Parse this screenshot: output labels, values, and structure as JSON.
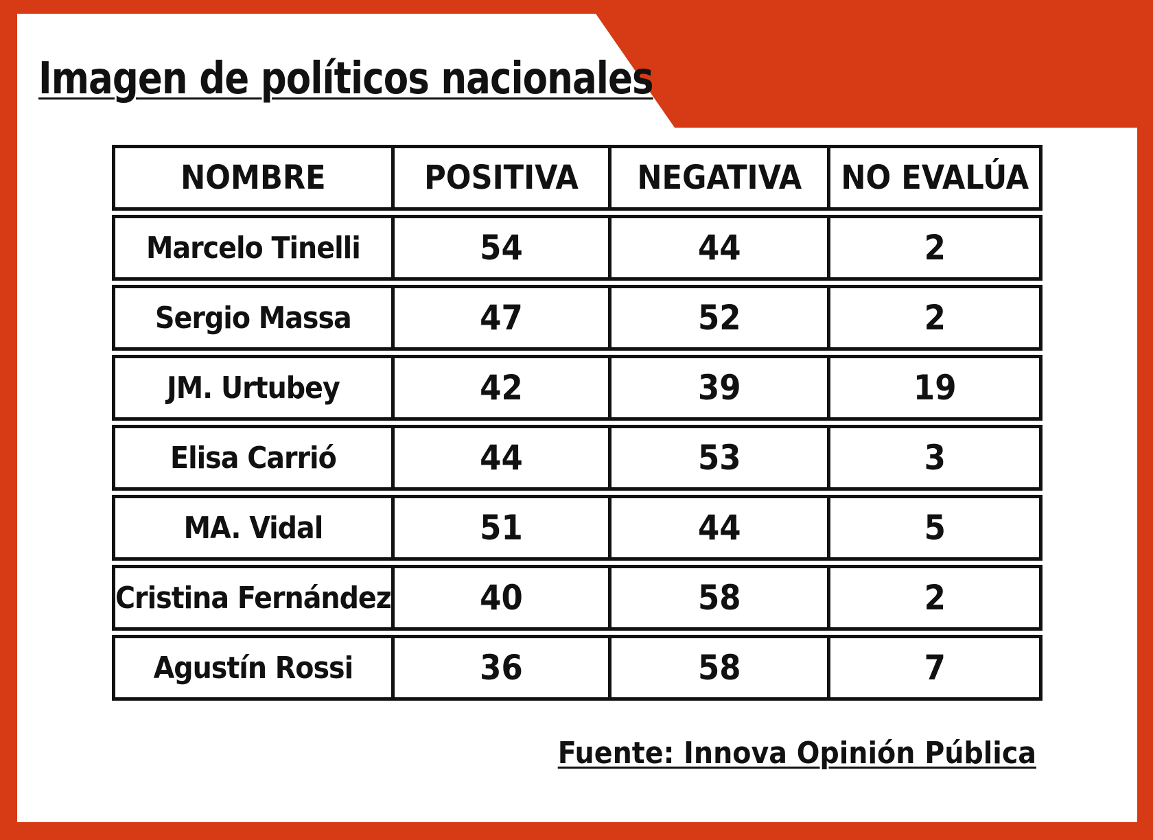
{
  "accent_color": "#d63b15",
  "chart_data": {
    "type": "table",
    "title": "Imagen de políticos nacionales",
    "columns": [
      "NOMBRE",
      "POSITIVA",
      "NEGATIVA",
      "NO EVALÚA"
    ],
    "rows": [
      {
        "name": "Marcelo Tinelli",
        "positiva": 54,
        "negativa": 44,
        "no_evalua": 2
      },
      {
        "name": "Sergio Massa",
        "positiva": 47,
        "negativa": 52,
        "no_evalua": 2
      },
      {
        "name": "JM. Urtubey",
        "positiva": 42,
        "negativa": 39,
        "no_evalua": 19
      },
      {
        "name": "Elisa Carrió",
        "positiva": 44,
        "negativa": 53,
        "no_evalua": 3
      },
      {
        "name": "MA. Vidal",
        "positiva": 51,
        "negativa": 44,
        "no_evalua": 5
      },
      {
        "name": "Cristina Fernández",
        "positiva": 40,
        "negativa": 58,
        "no_evalua": 2
      },
      {
        "name": "Agustín Rossi",
        "positiva": 36,
        "negativa": 58,
        "no_evalua": 7
      }
    ],
    "source": "Fuente: Innova Opinión Pública"
  }
}
